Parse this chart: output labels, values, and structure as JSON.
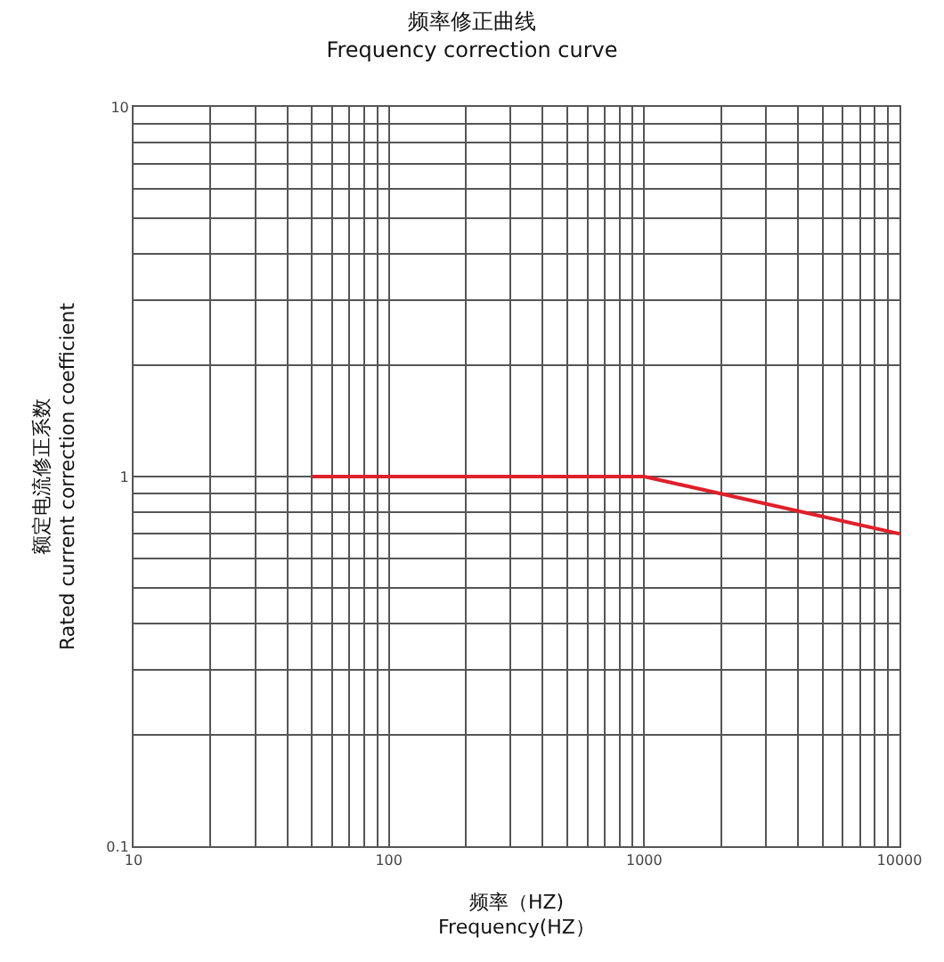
{
  "chart_data": {
    "type": "line",
    "title": "频率修正曲线\nFrequency correction curve",
    "xlabel": "频率（HZ)\nFrequency(HZ）",
    "ylabel": "额定电流修正系数\nRated current correction coefficient",
    "log": "xy",
    "grid": true,
    "marker": "none",
    "line_style": "solid",
    "x": [
      50,
      1000,
      10000
    ],
    "series": [
      {
        "color": "#e0202a",
        "values": [
          1,
          1,
          0.7
        ]
      }
    ],
    "xlim": [
      10,
      10000
    ],
    "xticks": [
      10,
      100,
      1000,
      10000
    ],
    "ylim": [
      0.1,
      10
    ],
    "yticks": [
      0.1,
      1,
      10
    ]
  }
}
